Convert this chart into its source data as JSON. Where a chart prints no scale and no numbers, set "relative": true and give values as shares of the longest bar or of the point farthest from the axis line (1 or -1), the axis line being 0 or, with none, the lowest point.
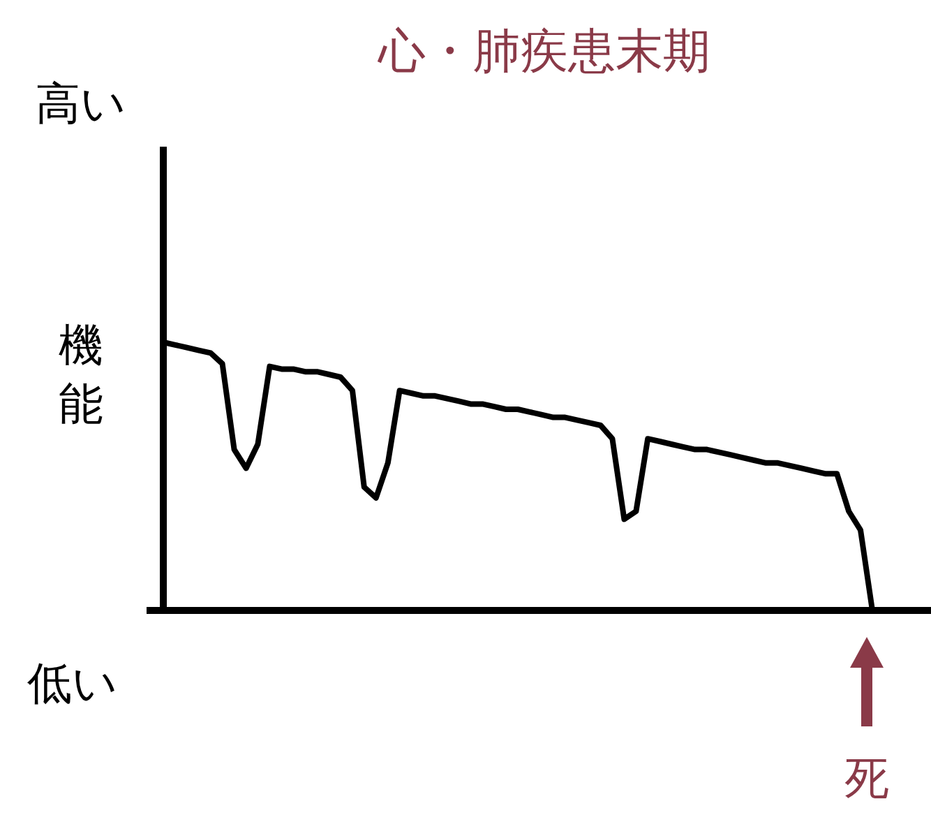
{
  "chart_data": {
    "type": "line",
    "title": "心・肺疾患末期",
    "ylabel": "機能",
    "relative": true,
    "annotations": [
      "高い",
      "低い",
      "死"
    ],
    "categories": [
      null,
      null,
      null,
      null,
      null,
      null,
      null,
      null,
      null,
      null,
      null,
      null,
      null,
      null,
      null,
      null,
      null,
      null,
      null,
      null,
      null,
      null,
      null,
      null,
      null,
      null,
      null,
      null,
      null,
      null,
      null,
      null,
      null,
      null,
      null,
      null,
      null,
      null,
      null,
      null,
      null,
      null,
      null,
      null,
      null,
      null,
      null,
      null,
      null,
      null,
      null,
      null,
      null,
      null,
      null,
      null,
      null,
      null,
      null,
      null,
      null
    ],
    "series": [
      {
        "color": "#000000",
        "values": [
          1.0,
          0.99,
          0.98,
          0.97,
          0.96,
          0.92,
          0.6,
          0.53,
          0.62,
          0.91,
          0.9,
          0.9,
          0.89,
          0.89,
          0.88,
          0.87,
          0.82,
          0.46,
          0.42,
          0.55,
          0.82,
          0.81,
          0.8,
          0.8,
          0.79,
          0.78,
          0.77,
          0.77,
          0.76,
          0.75,
          0.75,
          0.74,
          0.73,
          0.72,
          0.72,
          0.71,
          0.7,
          0.69,
          0.64,
          0.34,
          0.37,
          0.64,
          0.63,
          0.62,
          0.61,
          0.6,
          0.6,
          0.59,
          0.58,
          0.57,
          0.56,
          0.55,
          0.55,
          0.54,
          0.53,
          0.52,
          0.51,
          0.51,
          0.37,
          0.3,
          0.0
        ]
      }
    ]
  }
}
